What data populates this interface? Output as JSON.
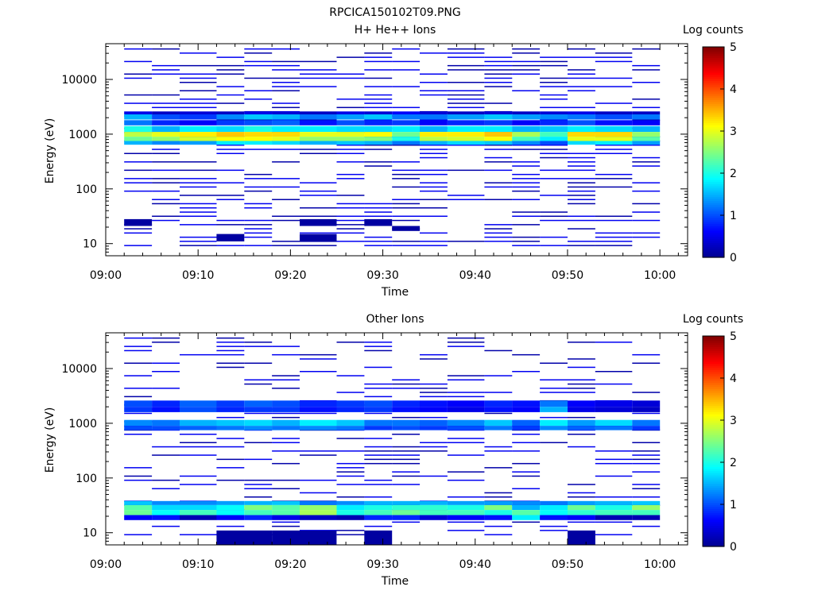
{
  "figure": {
    "title": "RPCICA150102T09.PNG"
  },
  "colors": {
    "colormap": [
      "#00008f",
      "#0000ff",
      "#0080ff",
      "#00ffff",
      "#80ff80",
      "#ffff00",
      "#ff8000",
      "#ff0000",
      "#800000"
    ],
    "axis": "#000000",
    "background": "#ffffff"
  },
  "chart_data": [
    {
      "type": "heatmap",
      "title": "H+ He++ Ions",
      "xlabel": "Time",
      "ylabel": "Energy (eV)",
      "yscale": "log",
      "xlim": [
        "09:00",
        "10:03"
      ],
      "ylim": [
        6,
        45000
      ],
      "xticks": [
        "09:00",
        "09:10",
        "09:20",
        "09:30",
        "09:40",
        "09:50",
        "10:00"
      ],
      "yticks": [
        "10",
        "100",
        "1000",
        "10000"
      ],
      "colorbar": {
        "label": "Log counts",
        "range": [
          0,
          5
        ],
        "ticks": [
          "0",
          "1",
          "2",
          "3",
          "4",
          "5"
        ]
      },
      "time_bins": [
        "09:02",
        "09:05",
        "09:08",
        "09:12",
        "09:15",
        "09:18",
        "09:21",
        "09:25",
        "09:28",
        "09:31",
        "09:34",
        "09:37",
        "09:41",
        "09:44",
        "09:47",
        "09:50",
        "09:53",
        "09:57"
      ],
      "dense_bands": [
        {
          "e_low": 1100,
          "e_high": 1400,
          "values": [
            2.0,
            1.5,
            1.8,
            1.7,
            2.0,
            1.8,
            1.8,
            1.7,
            1.7,
            1.8,
            1.5,
            1.8,
            1.8,
            1.5,
            1.6,
            1.8,
            1.7,
            1.5
          ]
        },
        {
          "e_low": 900,
          "e_high": 1100,
          "values": [
            2.8,
            3.0,
            3.2,
            3.4,
            3.3,
            3.3,
            3.0,
            3.0,
            3.1,
            2.4,
            3.2,
            3.2,
            3.4,
            2.7,
            2.2,
            3.3,
            3.3,
            2.6
          ]
        },
        {
          "e_low": 750,
          "e_high": 900,
          "values": [
            2.4,
            2.6,
            2.9,
            3.1,
            3.1,
            3.0,
            2.6,
            2.6,
            2.5,
            2.0,
            2.8,
            2.9,
            3.1,
            2.2,
            1.8,
            3.0,
            3.0,
            2.3
          ]
        },
        {
          "e_low": 640,
          "e_high": 750,
          "values": [
            1.5,
            1.3,
            1.4,
            1.8,
            1.8,
            1.7,
            1.5,
            1.6,
            1.5,
            1.2,
            1.5,
            1.7,
            1.6,
            1.3,
            1.0,
            1.7,
            1.8,
            1.4
          ]
        },
        {
          "e_low": 1450,
          "e_high": 1800,
          "values": [
            1.2,
            0.8,
            0.6,
            0.9,
            1.0,
            1.1,
            0.7,
            1.0,
            0.8,
            0.9,
            0.6,
            0.8,
            0.9,
            0.6,
            0.8,
            1.0,
            0.7,
            0.6
          ]
        },
        {
          "e_low": 1850,
          "e_high": 2300,
          "values": [
            1.5,
            1.0,
            0.9,
            1.3,
            1.6,
            1.5,
            1.2,
            1.4,
            1.6,
            1.2,
            1.2,
            1.4,
            1.6,
            1.4,
            1.3,
            1.2,
            1.0,
            1.2
          ]
        },
        {
          "e_low": 2300,
          "e_high": 2600,
          "values": [
            0.5,
            0.3,
            0.4,
            0.3,
            0.5,
            0.4,
            0.3,
            0.5,
            0.4,
            0.6,
            0.4,
            0.3,
            0.4,
            0.3,
            0.4,
            0.5,
            0.3,
            0.3
          ]
        }
      ],
      "sparse_seed": 7,
      "sparse_density": 0.45,
      "isolated_blocks": [
        {
          "t0": "09:02",
          "t1": "09:05",
          "e_low": 21,
          "e_high": 28,
          "value": 0.1
        },
        {
          "t0": "09:12",
          "t1": "09:15",
          "e_low": 11,
          "e_high": 15,
          "value": 0.1
        },
        {
          "t0": "09:21",
          "t1": "09:25",
          "e_low": 11,
          "e_high": 15,
          "value": 0.1
        },
        {
          "t0": "09:21",
          "t1": "09:25",
          "e_low": 21,
          "e_high": 28,
          "value": 0.1
        },
        {
          "t0": "09:28",
          "t1": "09:31",
          "e_low": 21,
          "e_high": 28,
          "value": 0.1
        },
        {
          "t0": "09:31",
          "t1": "09:34",
          "e_low": 17,
          "e_high": 21,
          "value": 0.1
        }
      ]
    },
    {
      "type": "heatmap",
      "title": "Other Ions",
      "xlabel": "Time",
      "ylabel": "Energy (eV)",
      "yscale": "log",
      "xlim": [
        "09:00",
        "10:03"
      ],
      "ylim": [
        6,
        45000
      ],
      "xticks": [
        "09:00",
        "09:10",
        "09:20",
        "09:30",
        "09:40",
        "09:50",
        "10:00"
      ],
      "yticks": [
        "10",
        "100",
        "1000",
        "10000"
      ],
      "colorbar": {
        "label": "Log counts",
        "range": [
          0,
          5
        ],
        "ticks": [
          "0",
          "1",
          "2",
          "3",
          "4",
          "5"
        ]
      },
      "time_bins": [
        "09:02",
        "09:05",
        "09:08",
        "09:12",
        "09:15",
        "09:18",
        "09:21",
        "09:25",
        "09:28",
        "09:31",
        "09:34",
        "09:37",
        "09:41",
        "09:44",
        "09:47",
        "09:50",
        "09:53",
        "09:57"
      ],
      "dense_bands": [
        {
          "e_low": 2000,
          "e_high": 2600,
          "values": [
            1.0,
            0.8,
            1.1,
            0.9,
            1.1,
            1.0,
            0.8,
            0.9,
            1.0,
            0.8,
            0.7,
            0.6,
            0.8,
            0.7,
            1.2,
            0.6,
            0.5,
            0.4
          ]
        },
        {
          "e_low": 1600,
          "e_high": 2000,
          "values": [
            0.9,
            0.7,
            1.0,
            0.8,
            0.9,
            0.9,
            0.7,
            0.8,
            0.9,
            0.7,
            0.6,
            0.5,
            0.7,
            0.6,
            1.5,
            0.5,
            0.4,
            0.3
          ]
        },
        {
          "e_low": 900,
          "e_high": 1150,
          "values": [
            1.3,
            1.2,
            1.5,
            1.6,
            1.7,
            1.5,
            1.8,
            1.6,
            1.2,
            1.2,
            1.1,
            1.3,
            1.6,
            1.1,
            1.8,
            1.4,
            1.7,
            1.2
          ]
        },
        {
          "e_low": 750,
          "e_high": 900,
          "values": [
            1.0,
            1.0,
            1.1,
            1.2,
            1.3,
            1.2,
            1.3,
            1.2,
            0.9,
            1.0,
            0.9,
            1.0,
            1.2,
            0.9,
            1.3,
            1.1,
            1.2,
            0.9
          ]
        },
        {
          "e_low": 32,
          "e_high": 38,
          "values": [
            1.6,
            1.3,
            1.3,
            1.4,
            1.5,
            1.6,
            1.2,
            1.3,
            1.5,
            1.5,
            1.5,
            1.4,
            1.4,
            1.3,
            1.2,
            1.4,
            1.5,
            1.6
          ]
        },
        {
          "e_low": 26,
          "e_high": 32,
          "values": [
            2.3,
            1.7,
            1.7,
            1.9,
            2.5,
            2.3,
            2.6,
            1.8,
            2.0,
            2.1,
            2.1,
            2.0,
            2.5,
            1.5,
            1.8,
            2.4,
            2.0,
            2.6
          ]
        },
        {
          "e_low": 21,
          "e_high": 26,
          "values": [
            2.4,
            1.9,
            2.2,
            1.9,
            2.2,
            2.3,
            2.7,
            2.0,
            2.2,
            2.4,
            2.2,
            2.2,
            2.0,
            2.3,
            1.9,
            2.1,
            2.2,
            2.2
          ]
        },
        {
          "e_low": 17,
          "e_high": 21,
          "values": [
            0.6,
            0.7,
            0.2,
            0.6,
            0.8,
            0.5,
            0.3,
            0.2,
            0.8,
            0.8,
            0.4,
            0.6,
            0.7,
            1.8,
            0.7,
            0.6,
            0.2,
            0.2
          ]
        }
      ],
      "sparse_seed": 3,
      "sparse_density": 0.32,
      "isolated_blocks": [
        {
          "t0": "09:12",
          "t1": "09:18",
          "e_low": 6,
          "e_high": 11,
          "value": 0.1
        },
        {
          "t0": "09:18",
          "t1": "09:25",
          "e_low": 6,
          "e_high": 11,
          "value": 0.1
        },
        {
          "t0": "09:28",
          "t1": "09:31",
          "e_low": 6,
          "e_high": 11,
          "value": 0.1
        },
        {
          "t0": "09:50",
          "t1": "09:53",
          "e_low": 6,
          "e_high": 11,
          "value": 0.1
        }
      ]
    }
  ]
}
